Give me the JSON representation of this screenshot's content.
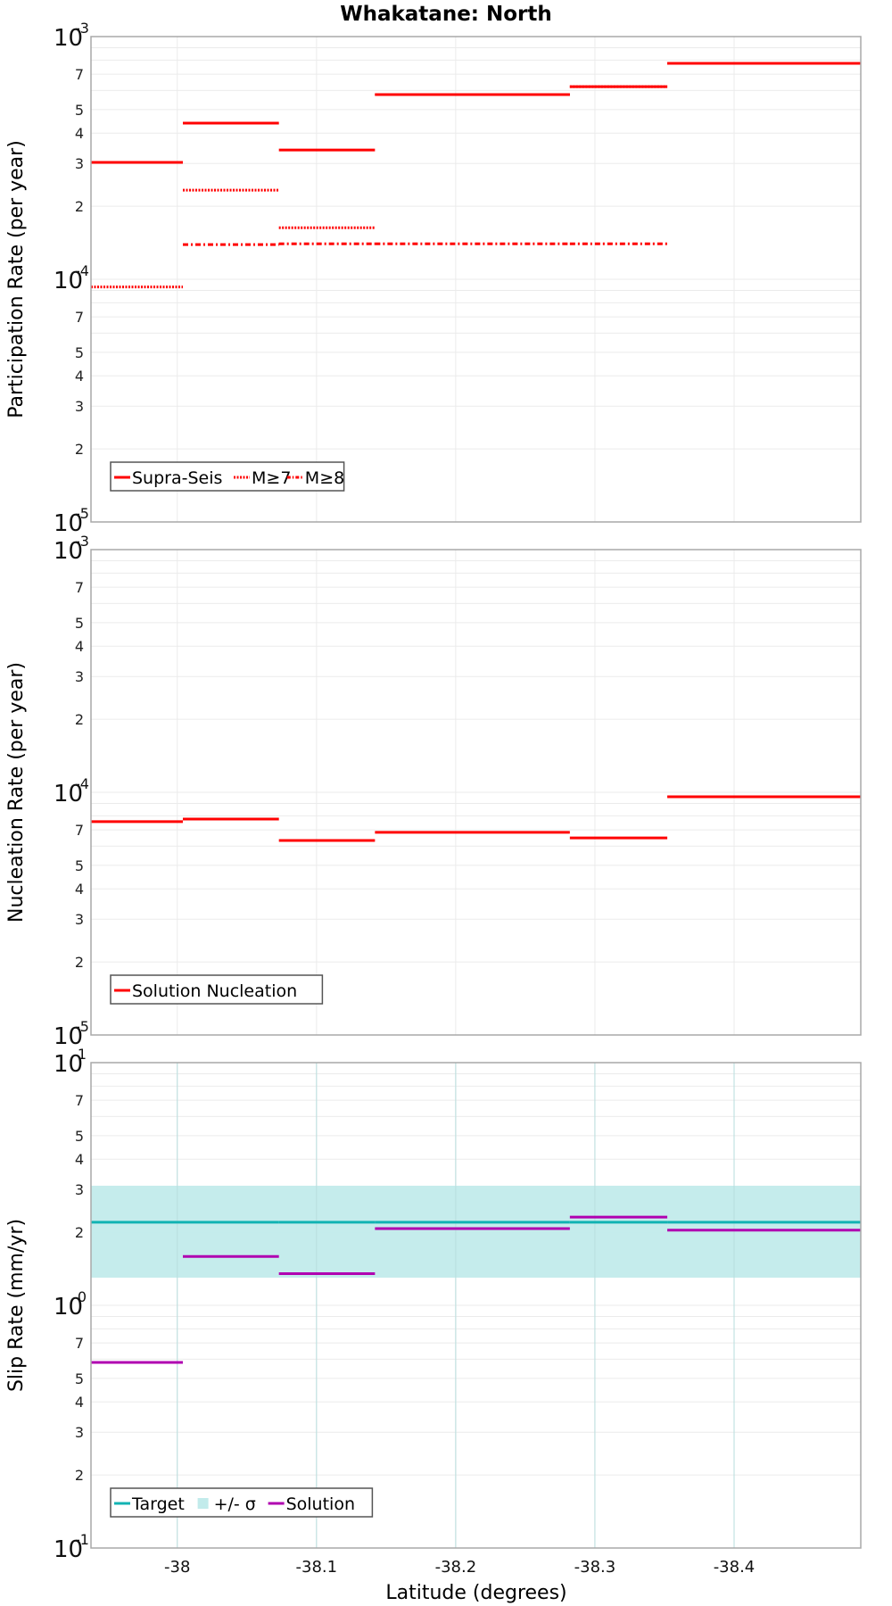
{
  "title": "Whakatane: North",
  "xlabel": "Latitude (degrees)",
  "colors": {
    "red": "#ff0000",
    "target": "#12b3b3",
    "band": "#c2ebeb",
    "solution": "#b000b0",
    "grid": "#ebebeb",
    "axis": "#a8a8a8"
  },
  "chart_data": [
    {
      "type": "line",
      "panel": "top",
      "ylabel": "Participation Rate (per year)",
      "yscale": "log",
      "ylim": [
        1e-05,
        0.001
      ],
      "xlim": [
        -37.938,
        -38.491
      ],
      "xticks": [
        -38,
        -38.1,
        -38.2,
        -38.3,
        -38.4
      ],
      "xtick_labels": [
        "-38",
        "-38.1",
        "-38.2",
        "-38.3",
        "-38.4"
      ],
      "segment_bounds": [
        -37.938,
        -38.004,
        -38.073,
        -38.142,
        -38.282,
        -38.352,
        -38.491
      ],
      "series": [
        {
          "name": "Supra-Seis",
          "style": "solid",
          "values": [
            0.000303,
            0.00044,
            0.000341,
            0.000577,
            0.000622,
            0.000776
          ]
        },
        {
          "name": "M≥7",
          "style": "dotted",
          "values": [
            9.3e-05,
            0.000233,
            0.000163,
            0.000577,
            0.000622,
            0.000776
          ]
        },
        {
          "name": "M≥8",
          "style": "dashdot",
          "values": [
            null,
            0.000139,
            0.00014,
            0.00014,
            0.00014,
            null
          ]
        }
      ],
      "legend": [
        "Supra-Seis",
        "M≥7",
        "M≥8"
      ],
      "legend_position": "lower left",
      "grid": true
    },
    {
      "type": "line",
      "panel": "middle",
      "ylabel": "Nucleation Rate (per year)",
      "yscale": "log",
      "ylim": [
        1e-05,
        0.001
      ],
      "xlim": [
        -37.938,
        -38.491
      ],
      "segment_bounds": [
        -37.938,
        -38.004,
        -38.073,
        -38.142,
        -38.282,
        -38.352,
        -38.491
      ],
      "series": [
        {
          "name": "Solution Nucleation",
          "style": "solid",
          "values": [
            7.57e-05,
            7.76e-05,
            6.33e-05,
            6.84e-05,
            6.49e-05,
            9.59e-05
          ]
        }
      ],
      "legend": [
        "Solution Nucleation"
      ],
      "legend_position": "lower left",
      "grid": true
    },
    {
      "type": "line",
      "panel": "bottom",
      "ylabel": "Slip Rate (mm/yr)",
      "xlabel": "Latitude (degrees)",
      "yscale": "log",
      "ylim": [
        0.1,
        10
      ],
      "xlim": [
        -37.938,
        -38.491
      ],
      "segment_bounds": [
        -37.938,
        -38.004,
        -38.073,
        -38.142,
        -38.282,
        -38.352,
        -38.491
      ],
      "series": [
        {
          "name": "Target",
          "style": "solid",
          "values": [
            2.2,
            2.2,
            2.2,
            2.2,
            2.2,
            2.2
          ]
        },
        {
          "name": "+/- σ",
          "style": "band",
          "lower": 1.3,
          "upper": 3.11
        },
        {
          "name": "Solution",
          "style": "solid",
          "values": [
            0.582,
            1.59,
            1.35,
            2.07,
            2.31,
            2.04
          ]
        }
      ],
      "legend": [
        "Target",
        "+/- σ",
        "Solution"
      ],
      "legend_position": "lower left",
      "grid": true
    }
  ],
  "panels": [
    {
      "ylabel": "Participation Rate (per year)",
      "major_ticks": [
        {
          "base": "10",
          "exp": "-3"
        },
        {
          "base": "10",
          "exp": "-4"
        },
        {
          "base": "10",
          "exp": "-5"
        }
      ],
      "legend_items": [
        "Supra-Seis",
        "M≥7",
        "M≥8"
      ]
    },
    {
      "ylabel": "Nucleation Rate (per year)",
      "major_ticks": [
        {
          "base": "10",
          "exp": "-3"
        },
        {
          "base": "10",
          "exp": "-4"
        },
        {
          "base": "10",
          "exp": "-5"
        }
      ],
      "legend_items": [
        "Solution Nucleation"
      ]
    },
    {
      "ylabel": "Slip Rate (mm/yr)",
      "major_ticks": [
        {
          "base": "10",
          "exp": "1"
        },
        {
          "base": "10",
          "exp": "0"
        },
        {
          "base": "10",
          "exp": "-1"
        }
      ],
      "legend_items": [
        "Target",
        "+/- σ",
        "Solution"
      ]
    }
  ],
  "minor_tick_labels": [
    "2",
    "3",
    "4",
    "5",
    "7"
  ]
}
